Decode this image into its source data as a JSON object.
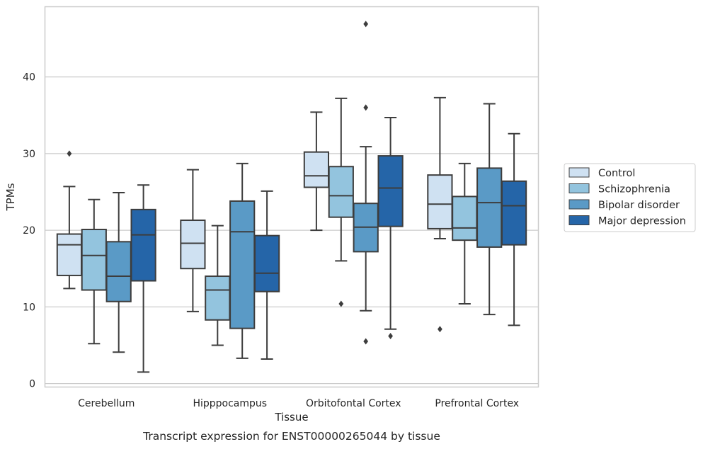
{
  "chart_data": {
    "type": "box",
    "title": "Transcript expression for ENST00000265044 by tissue",
    "xlabel": "Tissue",
    "ylabel": "TPMs",
    "ylim": [
      -0.5,
      49.2
    ],
    "yticks": [
      0,
      10,
      20,
      30,
      40
    ],
    "grid": "horizontal",
    "legend_position": "right",
    "categories": [
      "Cerebellum",
      "Hipppocampus",
      "Orbitofontal Cortex",
      "Prefrontal Cortex"
    ],
    "series": [
      {
        "name": "Control",
        "color": "#cfe1f2",
        "boxes": [
          {
            "min": 12.4,
            "q1": 14.1,
            "median": 18.1,
            "q3": 19.5,
            "max": 25.7,
            "outliers": [
              30.0
            ]
          },
          {
            "min": 9.4,
            "q1": 15.0,
            "median": 18.3,
            "q3": 21.3,
            "max": 27.9,
            "outliers": []
          },
          {
            "min": 20.0,
            "q1": 25.6,
            "median": 27.1,
            "q3": 30.2,
            "max": 35.4,
            "outliers": []
          },
          {
            "min": 18.9,
            "q1": 20.2,
            "median": 23.4,
            "q3": 27.2,
            "max": 37.3,
            "outliers": [
              7.1
            ]
          }
        ]
      },
      {
        "name": "Schizophrenia",
        "color": "#93c4de",
        "boxes": [
          {
            "min": 5.2,
            "q1": 12.2,
            "median": 16.7,
            "q3": 20.1,
            "max": 24.0,
            "outliers": []
          },
          {
            "min": 5.0,
            "q1": 8.3,
            "median": 12.2,
            "q3": 14.0,
            "max": 20.6,
            "outliers": []
          },
          {
            "min": 16.0,
            "q1": 21.7,
            "median": 24.5,
            "q3": 28.3,
            "max": 37.2,
            "outliers": [
              10.4
            ]
          },
          {
            "min": 10.4,
            "q1": 18.7,
            "median": 20.3,
            "q3": 24.4,
            "max": 28.7,
            "outliers": []
          }
        ]
      },
      {
        "name": "Bipolar disorder",
        "color": "#5a9ac6",
        "boxes": [
          {
            "min": 4.1,
            "q1": 10.7,
            "median": 14.0,
            "q3": 18.5,
            "max": 24.9,
            "outliers": []
          },
          {
            "min": 3.3,
            "q1": 7.2,
            "median": 19.8,
            "q3": 23.8,
            "max": 28.7,
            "outliers": []
          },
          {
            "min": 9.5,
            "q1": 17.2,
            "median": 20.4,
            "q3": 23.5,
            "max": 30.9,
            "outliers": [
              46.9,
              36.0,
              5.5
            ]
          },
          {
            "min": 9.0,
            "q1": 17.8,
            "median": 23.6,
            "q3": 28.1,
            "max": 36.5,
            "outliers": []
          }
        ]
      },
      {
        "name": "Major depression",
        "color": "#2565a8",
        "boxes": [
          {
            "min": 1.5,
            "q1": 13.4,
            "median": 19.4,
            "q3": 22.7,
            "max": 25.9,
            "outliers": []
          },
          {
            "min": 3.2,
            "q1": 12.0,
            "median": 14.4,
            "q3": 19.3,
            "max": 25.1,
            "outliers": []
          },
          {
            "min": 7.1,
            "q1": 20.5,
            "median": 25.5,
            "q3": 29.7,
            "max": 34.7,
            "outliers": [
              6.2
            ]
          },
          {
            "min": 7.6,
            "q1": 18.1,
            "median": 23.2,
            "q3": 26.4,
            "max": 32.6,
            "outliers": []
          }
        ]
      }
    ]
  }
}
